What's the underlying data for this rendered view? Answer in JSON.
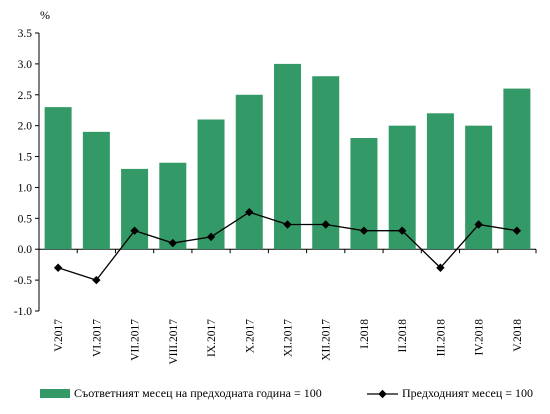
{
  "chart_data": {
    "type": "bar",
    "ylabel": "%",
    "ylim": [
      -1.0,
      3.5
    ],
    "ytick_step": 0.5,
    "ytick_labels": [
      "-1.0",
      "-0.5",
      "0.0",
      "0.5",
      "1.0",
      "1.5",
      "2.0",
      "2.5",
      "3.0",
      "3.5"
    ],
    "categories": [
      "V.2017",
      "VI.2017",
      "VII.2017",
      "VIII.2017",
      "IX.2017",
      "X.2017",
      "XI.2017",
      "XII.2017",
      "I.2018",
      "II.2018",
      "III.2018",
      "IV.2018",
      "V.2018"
    ],
    "series": [
      {
        "name": "Съответният месец на предходната година = 100",
        "kind": "bar",
        "color": "#339966",
        "values": [
          2.3,
          1.9,
          1.3,
          1.4,
          2.1,
          2.5,
          3.0,
          2.8,
          1.8,
          2.0,
          2.2,
          2.0,
          2.6
        ]
      },
      {
        "name": "Предходният месец = 100",
        "kind": "line",
        "color": "#000000",
        "marker": "diamond",
        "values": [
          -0.3,
          -0.5,
          0.3,
          0.1,
          0.2,
          0.6,
          0.4,
          0.4,
          0.3,
          0.3,
          -0.3,
          0.4,
          0.3
        ]
      }
    ],
    "grid": false,
    "legend_position": "bottom"
  }
}
